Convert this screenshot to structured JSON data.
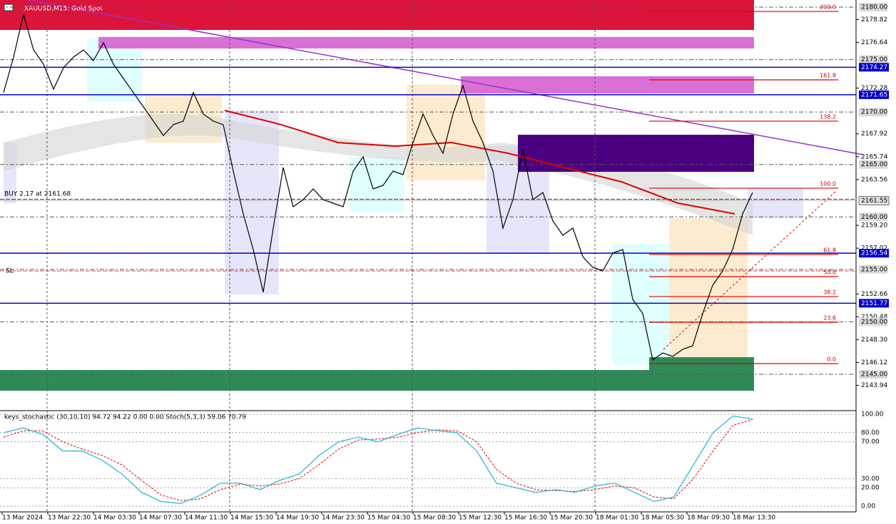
{
  "chart_data": {
    "type": "candles",
    "title": "XAUUSD,M15: Gold Spot",
    "ylim": [
      2141.6,
      2180.68
    ],
    "yticks": [
      {
        "value": 2178.82,
        "label": "2178.82"
      },
      {
        "value": 2176.64,
        "label": "2176.64"
      },
      {
        "value": 2172.28,
        "label": "2172.28"
      },
      {
        "value": 2167.92,
        "label": "2167.92"
      },
      {
        "value": 2165.74,
        "label": "2165.74"
      },
      {
        "value": 2163.56,
        "label": "2163.56"
      },
      {
        "value": 2159.2,
        "label": "2159.20"
      },
      {
        "value": 2157.02,
        "label": "2157.02"
      },
      {
        "value": 2152.66,
        "label": "2152.66"
      },
      {
        "value": 2150.48,
        "label": "2150.48"
      },
      {
        "value": 2148.3,
        "label": "2148.30"
      },
      {
        "value": 2146.12,
        "label": "2146.12"
      },
      {
        "value": 2143.94,
        "label": "2143.94"
      }
    ],
    "level_lines": [
      {
        "value": 2180,
        "label": "2180.00"
      },
      {
        "value": 2175,
        "label": "2175.00"
      },
      {
        "value": 2170,
        "label": "2170.00"
      },
      {
        "value": 2165,
        "label": "2165.00"
      },
      {
        "value": 2160,
        "label": "2160.00"
      },
      {
        "value": 2155,
        "label": "2155.00"
      },
      {
        "value": 2150,
        "label": "2150.00"
      },
      {
        "value": 2145,
        "label": "2145.00"
      }
    ],
    "blue_lines": [
      {
        "value": 2174.27,
        "label": "2174.27"
      },
      {
        "value": 2171.65,
        "label": "2171.65"
      },
      {
        "value": 2156.54,
        "label": "2156.54"
      },
      {
        "value": 2151.77,
        "label": "2151.77"
      }
    ],
    "price_marker": {
      "value": 2161.55,
      "label": "2161.55"
    },
    "buy_label": "BUY 2.17 at 2161.68",
    "buy_price": 2161.68,
    "sl_label": "SL",
    "sl_price": 2154.85,
    "fib_levels": [
      {
        "label": "200.0",
        "price": 2179.59
      },
      {
        "label": "161.8",
        "price": 2173.07
      },
      {
        "label": "138.2",
        "price": 2169.13
      },
      {
        "label": "100.0",
        "price": 2162.74
      },
      {
        "label": "61.8",
        "price": 2156.42
      },
      {
        "label": "50.0",
        "price": 2154.31
      },
      {
        "label": "38.2",
        "price": 2152.41
      },
      {
        "label": "23.6",
        "price": 2149.96
      },
      {
        "label": "0.0",
        "price": 2146.02
      }
    ],
    "categories": [
      "13 Mar 2024",
      "13 Mar 22:30",
      "14 Mar 03:30",
      "14 Mar 07:30",
      "14 Mar 11:30",
      "14 Mar 15:30",
      "14 Mar 19:30",
      "14 Mar 23:30",
      "15 Mar 04:30",
      "15 Mar 08:30",
      "15 Mar 12:30",
      "15 Mar 16:30",
      "15 Mar 20:30",
      "18 Mar 01:30",
      "18 Mar 05:30",
      "18 Mar 09:30",
      "18 Mar 13:30"
    ],
    "close": [
      2171.85,
      2175.24,
      2179.32,
      2175.92,
      2174.56,
      2172.18,
      2174.22,
      2175.24,
      2175.92,
      2174.9,
      2176.6,
      2174.56,
      2173.2,
      2171.85,
      2170.49,
      2169.13,
      2167.77,
      2168.79,
      2169.13,
      2171.85,
      2169.81,
      2169.13,
      2168.79,
      2164.37,
      2160.29,
      2156.89,
      2152.82,
      2158.93,
      2164.71,
      2160.97,
      2161.65,
      2162.67,
      2161.65,
      2161.31,
      2160.97,
      2164.37,
      2165.73,
      2162.67,
      2163.01,
      2164.37,
      2164.03,
      2167.09,
      2169.81,
      2167.77,
      2166.07,
      2169.81,
      2172.52,
      2169.13,
      2167.09,
      2164.37,
      2158.93,
      2161.65,
      2166.41,
      2161.65,
      2162.33,
      2159.61,
      2158.25,
      2158.93,
      2156.21,
      2155.19,
      2154.85,
      2156.55,
      2156.89,
      2152.14,
      2150.78,
      2146.36,
      2147.04,
      2146.7,
      2147.38,
      2147.72,
      2150.78,
      2153.49,
      2154.85,
      2156.89,
      2160.29,
      2162.33
    ],
    "close_color": "#000000",
    "ma_red": [
      2170.15,
      2168.79,
      2167.09,
      2166.75,
      2167.09,
      2166.07,
      2164.71,
      2163.35,
      2161.31,
      2160.29
    ],
    "ma_red_color": "#e00000",
    "indicator": {
      "label": "keys_stochastic (30,10,10) 94.72 94.22 0.00 0.00 Stoch(5,3,3) 59.06 70.79",
      "ylim": [
        -6.2,
        102.3
      ],
      "yticks": [
        {
          "value": 100,
          "label": "100.00"
        },
        {
          "value": 80,
          "label": "80.00"
        },
        {
          "value": 70,
          "label": "70.00"
        },
        {
          "value": 30,
          "label": "30.00"
        },
        {
          "value": 20,
          "label": "20.00"
        },
        {
          "value": 0,
          "label": "0.00"
        }
      ],
      "main": [
        80,
        85,
        78,
        60,
        60,
        50,
        35,
        15,
        5,
        3,
        12,
        25,
        25,
        18,
        28,
        35,
        55,
        70,
        75,
        70,
        78,
        85,
        82,
        80,
        60,
        25,
        20,
        15,
        18,
        15,
        22,
        25,
        15,
        5,
        10,
        45,
        80,
        98,
        94.72
      ],
      "signal": [
        75,
        82,
        82,
        70,
        62,
        55,
        45,
        28,
        12,
        6,
        8,
        18,
        24,
        22,
        24,
        30,
        45,
        62,
        72,
        73,
        75,
        80,
        83,
        82,
        70,
        40,
        25,
        18,
        17,
        16,
        18,
        22,
        20,
        10,
        8,
        30,
        60,
        88,
        94.22
      ],
      "main_color": "#1fb5d6",
      "signal_color": "#e00000"
    }
  }
}
